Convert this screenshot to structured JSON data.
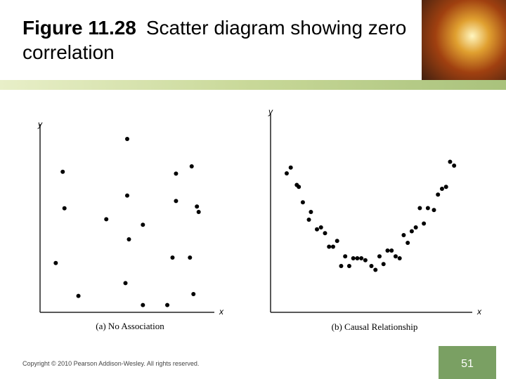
{
  "slide": {
    "figure_label": "Figure 11.28",
    "title": "Scatter diagram showing zero correlation",
    "copyright": "Copyright © 2010 Pearson Addison-Wesley. All rights reserved.",
    "page": "51"
  },
  "chart_data": [
    {
      "type": "scatter",
      "caption": "(a) No Association",
      "x_label": "x",
      "y_label": "y",
      "color": "#000000",
      "xlim": [
        0,
        100
      ],
      "ylim": [
        0,
        100
      ],
      "x": [
        9,
        13,
        14,
        22,
        38,
        50,
        50,
        51,
        49,
        59,
        59,
        73,
        76,
        78,
        78,
        87,
        86,
        90,
        91,
        88
      ],
      "values": [
        27,
        77,
        57,
        9,
        51,
        95,
        64,
        40,
        16,
        48,
        4,
        4,
        30,
        76,
        61,
        80,
        30,
        58,
        55,
        10
      ]
    },
    {
      "type": "scatter",
      "caption": "(b) Causal Relationship",
      "x_label": "x",
      "y_label": "y",
      "color": "#000000",
      "xlim": [
        0,
        100
      ],
      "ylim": [
        0,
        100
      ],
      "x": [
        8,
        10,
        13,
        14,
        16,
        20,
        19,
        23,
        25,
        27,
        29,
        31,
        33,
        37,
        35,
        39,
        41,
        43,
        45,
        47,
        50,
        52,
        54,
        56,
        58,
        60,
        62,
        64,
        66,
        68,
        70,
        72,
        74,
        76,
        78,
        81,
        83,
        85,
        87,
        89,
        91
      ],
      "values": [
        72,
        75,
        66,
        65,
        57,
        52,
        48,
        43,
        44,
        41,
        34,
        34,
        37,
        29,
        24,
        24,
        28,
        28,
        28,
        27,
        24,
        22,
        29,
        25,
        32,
        32,
        29,
        28,
        40,
        36,
        42,
        44,
        54,
        46,
        54,
        53,
        61,
        64,
        65,
        78,
        76
      ]
    }
  ]
}
